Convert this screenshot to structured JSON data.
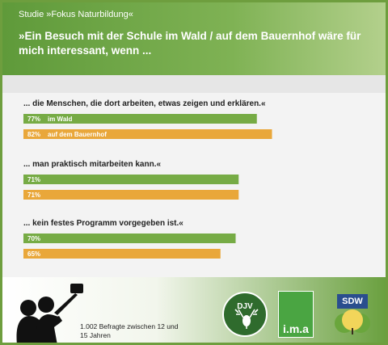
{
  "header": {
    "study_label": "Studie »Fokus Naturbildung«",
    "headline": "»Ein Besuch mit der Schule im Wald / auf dem Bauernhof wäre für mich interessant, wenn ..."
  },
  "footer": {
    "note": "1.002 Befragte zwischen 12 und 15 Jahren",
    "logos": {
      "djv": "DJV",
      "ima": "i.m.a",
      "sdw": "SDW"
    }
  },
  "colors": {
    "wald": "#76ab45",
    "bauernhof": "#e9a73a",
    "header": "#6e9e3e"
  },
  "chart_data": {
    "type": "bar",
    "orientation": "horizontal",
    "value_suffix": "%",
    "series": [
      {
        "name": "im  Wald",
        "color": "#76ab45"
      },
      {
        "name": "auf dem Bauernhof",
        "color": "#e9a73a"
      }
    ],
    "groups": [
      {
        "label": "... die Menschen, die dort arbeiten, etwas zeigen und erklären.«",
        "values": [
          77,
          82
        ],
        "show_series_names": true
      },
      {
        "label": "... man praktisch mitarbeiten kann.«",
        "values": [
          71,
          71
        ],
        "show_series_names": false
      },
      {
        "label": "... kein festes Programm vorgegeben ist.«",
        "values": [
          70,
          65
        ],
        "show_series_names": false
      }
    ],
    "xlim": [
      0,
      100
    ]
  }
}
